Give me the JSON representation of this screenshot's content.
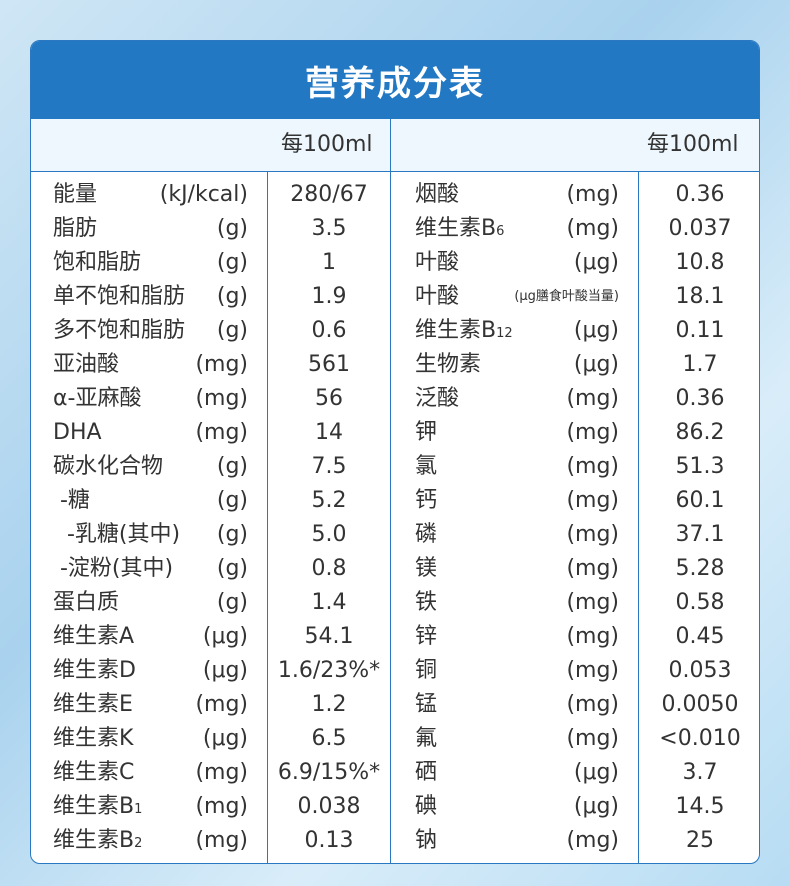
{
  "title": "营养成分表",
  "header": {
    "left_per": "每100ml",
    "right_per": "每100ml"
  },
  "left_rows": [
    {
      "name": "能量",
      "unit": "(kJ/kcal)",
      "value": "280/67"
    },
    {
      "name": "脂肪",
      "unit": "(g)",
      "value": "3.5"
    },
    {
      "name": "饱和脂肪",
      "unit": "(g)",
      "value": "1"
    },
    {
      "name": "单不饱和脂肪",
      "unit": "(g)",
      "value": "1.9"
    },
    {
      "name": "多不饱和脂肪",
      "unit": "(g)",
      "value": "0.6"
    },
    {
      "name": "亚油酸",
      "unit": "(mg)",
      "value": "561"
    },
    {
      "name": "α-亚麻酸",
      "unit": "(mg)",
      "value": "56"
    },
    {
      "name": "DHA",
      "unit": "(mg)",
      "value": "14"
    },
    {
      "name": "碳水化合物",
      "unit": "(g)",
      "value": "7.5"
    },
    {
      "name": " -糖",
      "unit": "(g)",
      "value": "5.2"
    },
    {
      "name": "  -乳糖(其中)",
      "unit": "(g)",
      "value": "5.0"
    },
    {
      "name": " -淀粉(其中)",
      "unit": "(g)",
      "value": "0.8"
    },
    {
      "name": "蛋白质",
      "unit": "(g)",
      "value": "1.4"
    },
    {
      "name": "维生素A",
      "unit": "(μg)",
      "value": "54.1"
    },
    {
      "name": "维生素D",
      "unit": "(μg)",
      "value": "1.6/23%*"
    },
    {
      "name": "维生素E",
      "unit": "(mg)",
      "value": "1.2"
    },
    {
      "name": "维生素K",
      "unit": "(μg)",
      "value": "6.5"
    },
    {
      "name": "维生素C",
      "unit": "(mg)",
      "value": "6.9/15%*"
    },
    {
      "name": "维生素B",
      "sub": "1",
      "unit": "(mg)",
      "value": "0.038"
    },
    {
      "name": "维生素B",
      "sub": "2",
      "unit": "(mg)",
      "value": "0.13"
    }
  ],
  "right_rows": [
    {
      "name": "烟酸",
      "unit": "(mg)",
      "value": "0.36"
    },
    {
      "name": "维生素B",
      "sub": "6",
      "unit": "(mg)",
      "value": "0.037"
    },
    {
      "name": "叶酸",
      "unit": "(μg)",
      "value": "10.8"
    },
    {
      "name": "叶酸",
      "unit": "(μg膳食叶酸当量)",
      "unit_small": true,
      "value": "18.1"
    },
    {
      "name": "维生素B",
      "sub": "12",
      "unit": "(μg)",
      "value": "0.11"
    },
    {
      "name": "生物素",
      "unit": "(μg)",
      "value": "1.7"
    },
    {
      "name": "泛酸",
      "unit": "(mg)",
      "value": "0.36"
    },
    {
      "name": "钾",
      "unit": "(mg)",
      "value": "86.2"
    },
    {
      "name": "氯",
      "unit": "(mg)",
      "value": "51.3"
    },
    {
      "name": "钙",
      "unit": "(mg)",
      "value": "60.1"
    },
    {
      "name": "磷",
      "unit": "(mg)",
      "value": "37.1"
    },
    {
      "name": "镁",
      "unit": "(mg)",
      "value": "5.28"
    },
    {
      "name": "铁",
      "unit": "(mg)",
      "value": "0.58"
    },
    {
      "name": "锌",
      "unit": "(mg)",
      "value": "0.45"
    },
    {
      "name": "铜",
      "unit": "(mg)",
      "value": "0.053"
    },
    {
      "name": "锰",
      "unit": "(mg)",
      "value": "0.0050"
    },
    {
      "name": "氟",
      "unit": "(mg)",
      "value": "<0.010"
    },
    {
      "name": "硒",
      "unit": "(μg)",
      "value": "3.7"
    },
    {
      "name": "碘",
      "unit": "(μg)",
      "value": "14.5"
    },
    {
      "name": "钠",
      "unit": "(mg)",
      "value": "25"
    }
  ],
  "colors": {
    "accent": "#2378c3",
    "header_bg": "#eef7fd",
    "text": "#333333"
  }
}
